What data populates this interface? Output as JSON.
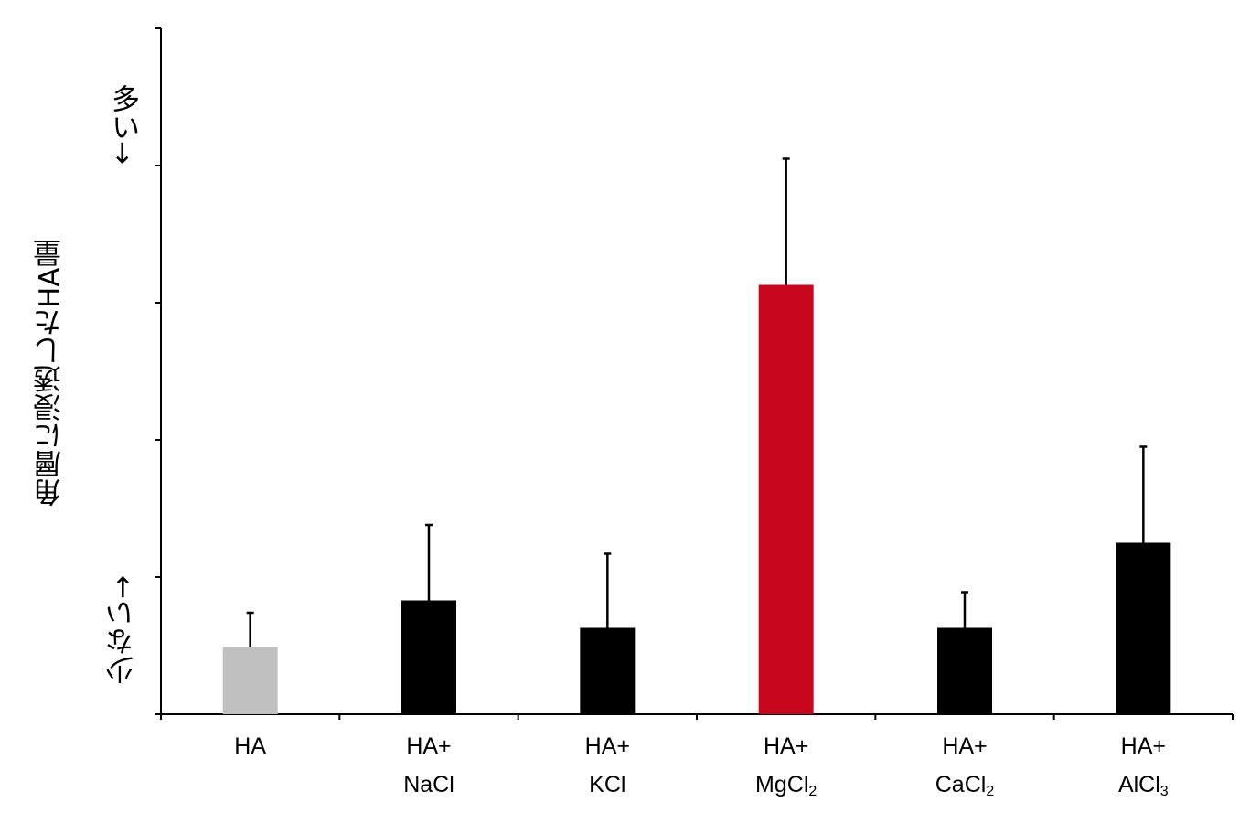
{
  "chart_data": {
    "type": "bar",
    "categories": [
      {
        "line1": "HA",
        "line2": "",
        "sub": ""
      },
      {
        "line1": "HA+",
        "line2": "NaCl",
        "sub": ""
      },
      {
        "line1": "HA+",
        "line2": "KCl",
        "sub": ""
      },
      {
        "line1": "HA+",
        "line2": "MgCl",
        "sub": "2"
      },
      {
        "line1": "HA+",
        "line2": "CaCl",
        "sub": "2"
      },
      {
        "line1": "HA+",
        "line2": "AlCl",
        "sub": "3"
      }
    ],
    "values": [
      0.49,
      0.83,
      0.63,
      3.13,
      0.63,
      1.25
    ],
    "errors": [
      0.25,
      0.55,
      0.54,
      0.92,
      0.26,
      0.7
    ],
    "colors": [
      "#c0c0c0",
      "#000000",
      "#000000",
      "#c8071e",
      "#000000",
      "#000000"
    ],
    "ylim": [
      0,
      5
    ],
    "yticks": [
      0,
      1,
      2,
      3,
      4,
      5
    ],
    "ylabel": "角層に浸透したHA量",
    "y_high_label": "多い→",
    "y_low_label": "少ない→",
    "grid": false,
    "legend": "none"
  }
}
